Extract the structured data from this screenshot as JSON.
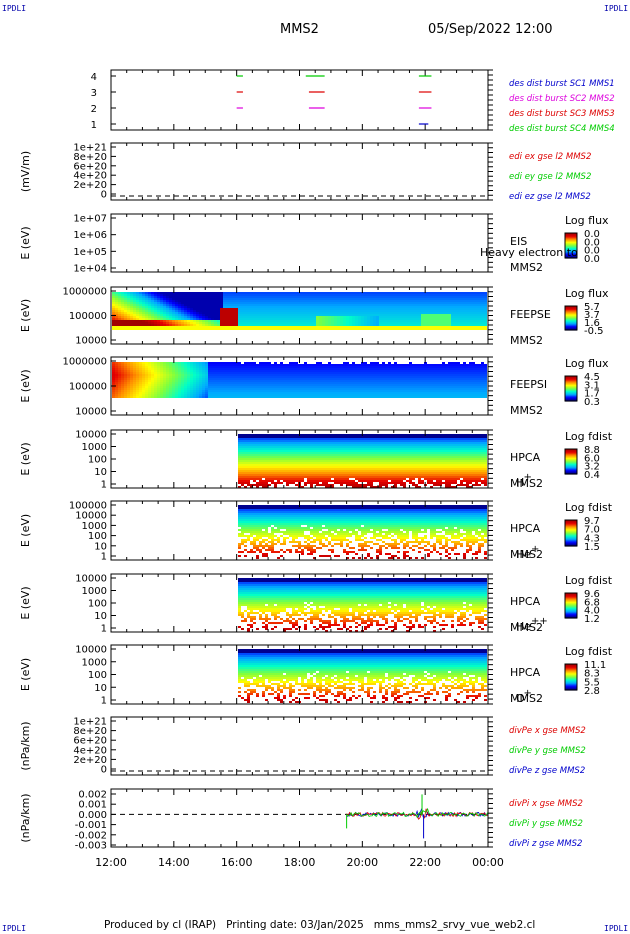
{
  "header": {
    "corner_tl": "IPDLI",
    "corner_tr": "IPDLI",
    "corner_bl": "IPDLI",
    "corner_br": "IPDLI",
    "spacecraft": "MMS2",
    "datetime": "05/Sep/2022 12:00"
  },
  "footer": {
    "text": "Produced by cl (IRAP)   Printing date: 03/Jan/2025   mms_mms2_srvy_vue_web2.cl"
  },
  "chart_data": [
    {
      "type": "line",
      "id": "burst",
      "yticks": [
        "4",
        "3",
        "2",
        "1"
      ],
      "series": [
        {
          "name": "des dist burst SC1 MMS1",
          "color": "#0000cc",
          "values": [
            {
              "t0": 21.8,
              "t1": 22.1,
              "y": 1
            }
          ]
        },
        {
          "name": "des dist burst SC2 MMS2",
          "color": "#dd00dd",
          "values": [
            {
              "t0": 16.0,
              "t1": 16.2,
              "y": 2
            },
            {
              "t0": 18.3,
              "t1": 18.8,
              "y": 2
            },
            {
              "t0": 21.8,
              "t1": 22.2,
              "y": 2
            }
          ]
        },
        {
          "name": "des dist burst SC3 MMS3",
          "color": "#dd0000",
          "values": [
            {
              "t0": 16.0,
              "t1": 16.2,
              "y": 3
            },
            {
              "t0": 18.3,
              "t1": 18.8,
              "y": 3
            },
            {
              "t0": 21.8,
              "t1": 22.2,
              "y": 3
            }
          ]
        },
        {
          "name": "des dist burst SC4 MMS4",
          "color": "#00cc00",
          "values": [
            {
              "t0": 16.0,
              "t1": 16.2,
              "y": 4
            },
            {
              "t0": 18.2,
              "t1": 18.8,
              "y": 4
            },
            {
              "t0": 21.8,
              "t1": 22.2,
              "y": 4
            }
          ]
        }
      ]
    },
    {
      "type": "line",
      "id": "edi",
      "ylabel": "(mV/m)",
      "yticks": [
        "1e+21",
        "8e+20",
        "6e+20",
        "4e+20",
        "2e+20",
        "0"
      ],
      "series": [
        {
          "name": "edi ex gse l2 MMS2",
          "color": "#dd0000"
        },
        {
          "name": "edi ey gse l2 MMS2",
          "color": "#00cc00"
        },
        {
          "name": "edi ez gse l2 MMS2",
          "color": "#0000cc"
        }
      ]
    },
    {
      "type": "heatmap",
      "id": "eis",
      "ylabel": "E (eV)",
      "yticks": [
        "1e+07",
        "1e+06",
        "1e+05",
        "1e+04"
      ],
      "right_labels": [
        "EIS",
        "MMS2"
      ],
      "overlay": "Heavy electron to",
      "colorbar_title": "Log flux",
      "colorbar_ticks": [
        "0.0",
        "0.0",
        "0.0",
        "0.0"
      ]
    },
    {
      "type": "heatmap",
      "id": "feepse",
      "ylabel": "E (eV)",
      "yticks": [
        "1000000",
        "100000",
        "10000"
      ],
      "right_labels": [
        "FEEPSE",
        "MMS2"
      ],
      "colorbar_title": "Log flux",
      "colorbar_ticks": [
        "5.7",
        "3.7",
        "1.6",
        "-0.5"
      ]
    },
    {
      "type": "heatmap",
      "id": "feepsi",
      "ylabel": "E (eV)",
      "yticks": [
        "1000000",
        "100000",
        "10000"
      ],
      "right_labels": [
        "FEEPSI",
        "MMS2"
      ],
      "colorbar_title": "Log flux",
      "colorbar_ticks": [
        "4.5",
        "3.1",
        "1.7",
        "0.3"
      ]
    },
    {
      "type": "heatmap",
      "id": "hpca_h",
      "ylabel": "E (eV)",
      "yticks": [
        "10000",
        "1000",
        "100",
        "10",
        "1"
      ],
      "right_labels": [
        "HPCA",
        "MMS2"
      ],
      "species": "H",
      "charge": "+",
      "colorbar_title": "Log fdist",
      "colorbar_ticks": [
        "8.8",
        "6.0",
        "3.2",
        "0.4"
      ]
    },
    {
      "type": "heatmap",
      "id": "hpca_he1",
      "ylabel": "E (eV)",
      "yticks": [
        "100000",
        "10000",
        "1000",
        "100",
        "10",
        "1"
      ],
      "right_labels": [
        "HPCA",
        "MMS2"
      ],
      "species": "He",
      "charge": "+",
      "colorbar_title": "Log fdist",
      "colorbar_ticks": [
        "9.7",
        "7.0",
        "4.3",
        "1.5"
      ]
    },
    {
      "type": "heatmap",
      "id": "hpca_he2",
      "ylabel": "E (eV)",
      "yticks": [
        "10000",
        "1000",
        "100",
        "10",
        "1"
      ],
      "right_labels": [
        "HPCA",
        "MMS2"
      ],
      "species": "He",
      "charge": "++",
      "colorbar_title": "Log fdist",
      "colorbar_ticks": [
        "9.6",
        "6.8",
        "4.0",
        "1.2"
      ]
    },
    {
      "type": "heatmap",
      "id": "hpca_o",
      "ylabel": "E (eV)",
      "yticks": [
        "10000",
        "1000",
        "100",
        "10",
        "1"
      ],
      "right_labels": [
        "HPCA",
        "MMS2"
      ],
      "species": "O",
      "charge": "+",
      "colorbar_title": "Log fdist",
      "colorbar_ticks": [
        "11.1",
        "8.3",
        "5.5",
        "2.8"
      ]
    },
    {
      "type": "line",
      "id": "divpe",
      "ylabel": "(nPa/km)",
      "yticks": [
        "1e+21",
        "8e+20",
        "6e+20",
        "4e+20",
        "2e+20",
        "0"
      ],
      "series": [
        {
          "name": "divPe x gse MMS2",
          "color": "#dd0000"
        },
        {
          "name": "divPe y gse MMS2",
          "color": "#00cc00"
        },
        {
          "name": "divPe z gse MMS2",
          "color": "#0000cc"
        }
      ]
    },
    {
      "type": "line",
      "id": "divpi",
      "ylabel": "(nPa/km)",
      "yticks": [
        "0.002",
        "0.001",
        "0.000",
        "-0.001",
        "-0.002",
        "-0.003"
      ],
      "series": [
        {
          "name": "divPi x gse MMS2",
          "color": "#dd0000"
        },
        {
          "name": "divPi y gse MMS2",
          "color": "#00cc00"
        },
        {
          "name": "divPi z gse MMS2",
          "color": "#0000cc"
        }
      ]
    }
  ],
  "x_axis": {
    "ticks": [
      "12:00",
      "14:00",
      "16:00",
      "18:00",
      "20:00",
      "22:00",
      "00:00"
    ]
  }
}
